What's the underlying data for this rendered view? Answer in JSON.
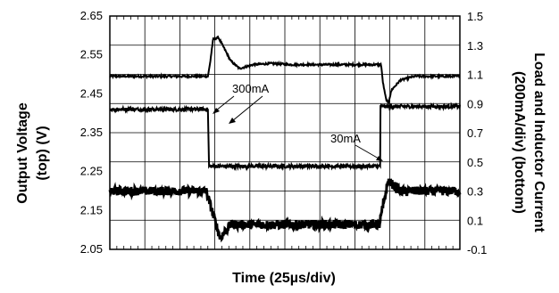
{
  "chart_data": {
    "type": "line",
    "xlabel": "Time (25µs/div)",
    "ylabel_left": [
      "Output Voltage",
      "(top) (V)"
    ],
    "ylabel_right": [
      "Load and Inductor Current",
      "(200mA/div) (bottom)"
    ],
    "x_range": [
      0,
      10
    ],
    "x_divisions": 10,
    "ylim_left": [
      2.05,
      2.65
    ],
    "ylim_right": [
      -0.1,
      1.5
    ],
    "left_ticks": [
      "2.65",
      "2.55",
      "2.45",
      "2.35",
      "2.25",
      "2.15",
      "2.05"
    ],
    "right_ticks": [
      "1.5",
      "1.3",
      "1.1",
      "0.9",
      "0.7",
      "0.5",
      "0.3",
      "0.1",
      "-0.1"
    ],
    "grid": true,
    "minor_ticks_per_division": 5,
    "series": [
      {
        "axis": "left",
        "x": [
          0,
          2.8,
          2.85,
          2.95,
          3.1,
          3.25,
          3.45,
          3.7,
          4.1,
          4.6,
          5.2,
          6.5,
          7.75,
          7.8,
          7.88,
          7.95,
          8.05,
          8.3,
          8.7,
          10
        ],
        "y": [
          2.495,
          2.495,
          2.52,
          2.59,
          2.595,
          2.57,
          2.535,
          2.515,
          2.525,
          2.528,
          2.525,
          2.525,
          2.525,
          2.48,
          2.44,
          2.425,
          2.46,
          2.485,
          2.495,
          2.495
        ],
        "noise": 0.0025
      },
      {
        "axis": "right",
        "x": [
          0,
          2.8,
          2.81,
          10
        ],
        "y": [
          0.9,
          0.9,
          0.5,
          0.5
        ],
        "x2": [
          7.7,
          7.71
        ],
        "y2": [
          0.5,
          0.9
        ],
        "segments": [
          [
            0,
            2.8,
            0.86
          ],
          [
            2.83,
            7.73,
            0.47
          ],
          [
            7.73,
            10,
            0.88
          ]
        ],
        "noise": 0.012
      },
      {
        "axis": "right",
        "segments": [
          [
            0,
            2.75,
            0.3
          ],
          [
            2.75,
            3.15,
            "ramp",
            0.3,
            -0.02
          ],
          [
            3.15,
            3.45,
            "ramp",
            -0.02,
            0.07
          ],
          [
            3.45,
            7.7,
            0.07
          ],
          [
            7.7,
            7.95,
            "ramp",
            0.07,
            0.37
          ],
          [
            7.95,
            8.3,
            "ramp",
            0.37,
            0.3
          ],
          [
            8.3,
            10,
            0.3
          ]
        ],
        "noise": 0.03
      }
    ],
    "annotations": [
      {
        "text": "300mA"
      },
      {
        "text": "30mA"
      }
    ]
  }
}
